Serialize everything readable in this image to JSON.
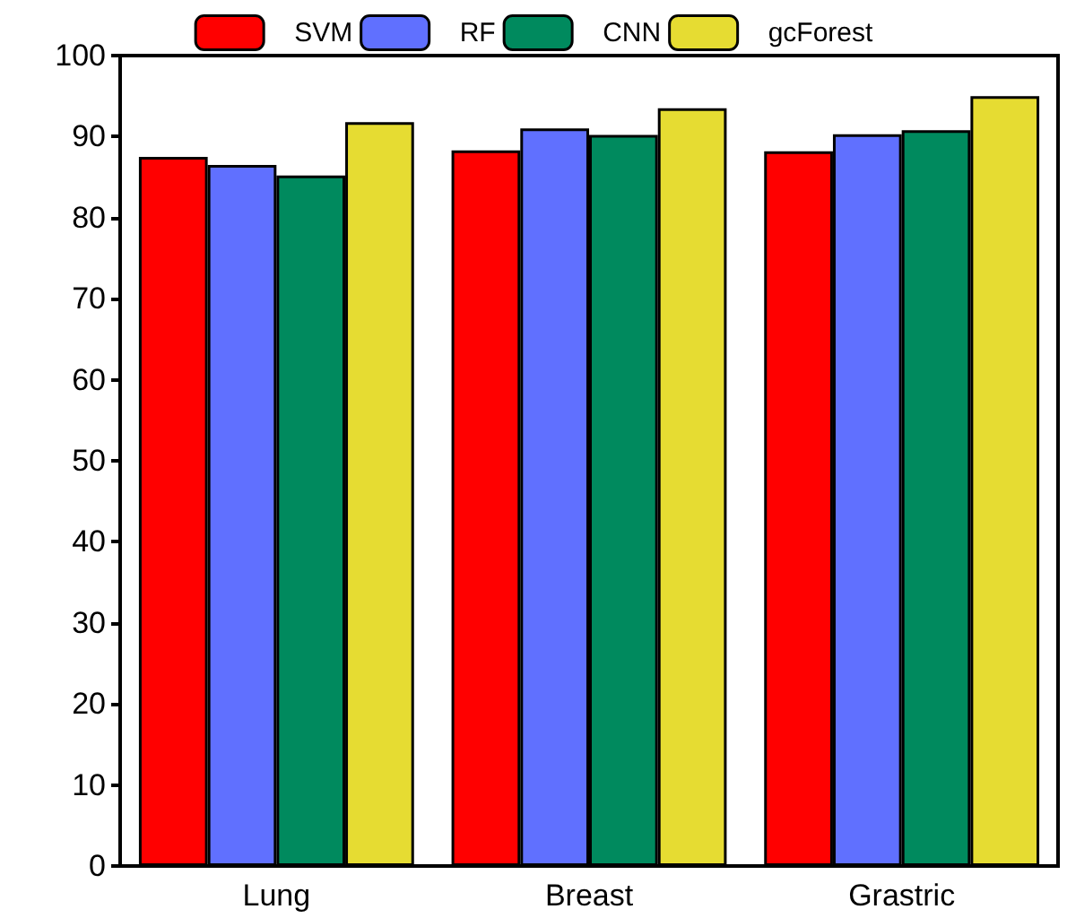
{
  "chart_data": {
    "type": "bar",
    "categories": [
      "Lung",
      "Breast",
      "Grastric"
    ],
    "series": [
      {
        "name": "SVM",
        "color": "#ff0000",
        "values": [
          87.5,
          88.3,
          88.2
        ]
      },
      {
        "name": "RF",
        "color": "#6070ff",
        "values": [
          86.5,
          91.0,
          90.3
        ]
      },
      {
        "name": "CNN",
        "color": "#008a5e",
        "values": [
          85.2,
          90.2,
          90.8
        ]
      },
      {
        "name": "gcForest",
        "color": "#e6dc32",
        "values": [
          91.8,
          93.5,
          95.0
        ]
      }
    ],
    "ylim": [
      0,
      100
    ],
    "yticks": [
      0,
      10,
      20,
      30,
      40,
      50,
      60,
      70,
      80,
      90,
      100
    ],
    "grid": false,
    "legend": "top"
  }
}
